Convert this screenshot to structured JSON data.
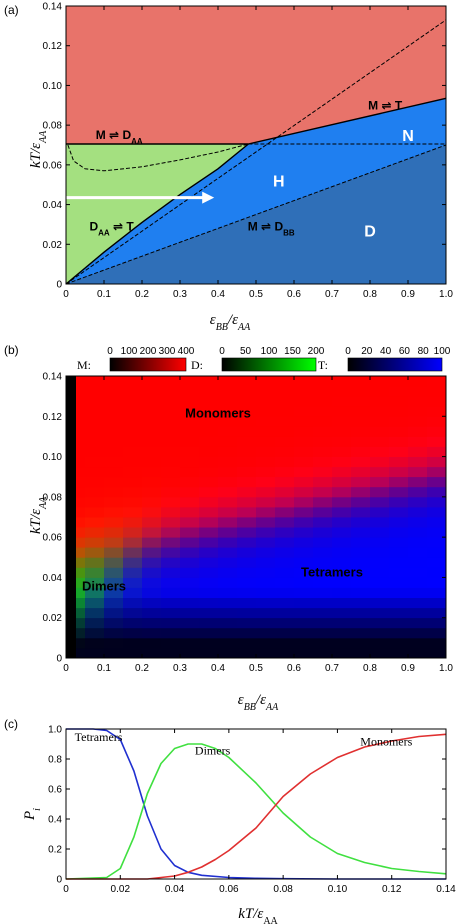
{
  "panels": {
    "a": {
      "label": "(a)"
    },
    "b": {
      "label": "(b)"
    },
    "c": {
      "label": "(c)"
    }
  },
  "colors": {
    "monomer_region": "#e8736a",
    "dimer_region": "#a4e080",
    "hex_region": "#1f7ff0",
    "nematic_region": "#1f7ff0",
    "dense_region": "#2f6fb8",
    "tetramers_curve": "#2030d0",
    "dimers_curve": "#40e040",
    "monomers_curve": "#e03030"
  },
  "chart_data": [
    {
      "type": "area",
      "title": "",
      "xlabel": "εBB/εAA",
      "ylabel": "kT/εAA",
      "xlim": [
        0,
        1.0
      ],
      "ylim": [
        0,
        0.14
      ],
      "x_ticks": [
        "0",
        "0.1",
        "0.2",
        "0.3",
        "0.4",
        "0.5",
        "0.6",
        "0.7",
        "0.8",
        "0.9",
        "1.0"
      ],
      "y_ticks": [
        "0",
        "0.02",
        "0.04",
        "0.06",
        "0.08",
        "0.10",
        "0.12",
        "0.14"
      ],
      "regions": [
        {
          "label": "N",
          "x": 0.9,
          "y": 0.075
        },
        {
          "label": "H",
          "x": 0.56,
          "y": 0.052
        },
        {
          "label": "D",
          "x": 0.8,
          "y": 0.027
        }
      ],
      "annotations": [
        {
          "text": "M ⇌ T",
          "x": 0.84,
          "y": 0.09
        },
        {
          "text": "M ⇌ D",
          "sub": "AA",
          "x": 0.14,
          "y": 0.075
        },
        {
          "text": "D",
          "sub": "AA",
          "tail": " ⇌ T",
          "x": 0.12,
          "y": 0.029
        },
        {
          "text": "M ⇌ D",
          "sub": "BB",
          "x": 0.54,
          "y": 0.029
        }
      ],
      "boundaries": {
        "mt_line": [
          [
            0.48,
            0.0705
          ],
          [
            1.0,
            0.0935
          ]
        ],
        "dimer_hex_line": [
          [
            0.0,
            0.0
          ],
          [
            0.1,
            0.016
          ],
          [
            0.2,
            0.031
          ],
          [
            0.3,
            0.045
          ],
          [
            0.4,
            0.058
          ],
          [
            0.48,
            0.0705
          ]
        ],
        "dense_line": [
          [
            0.0,
            0.0
          ],
          [
            1.0,
            0.07
          ]
        ],
        "horizontal_line": [
          [
            0.0,
            0.0705
          ],
          [
            1.0,
            0.0705
          ]
        ],
        "dashed_diagonal": [
          [
            0.0,
            0.0
          ],
          [
            1.0,
            0.133
          ]
        ],
        "dashed_dimer_curve": [
          [
            0.005,
            0.07
          ],
          [
            0.02,
            0.062
          ],
          [
            0.05,
            0.058
          ],
          [
            0.1,
            0.057
          ],
          [
            0.2,
            0.059
          ],
          [
            0.3,
            0.0625
          ],
          [
            0.4,
            0.0665
          ],
          [
            0.48,
            0.0705
          ]
        ],
        "dashed_horizontal": [
          [
            0.48,
            0.0705
          ],
          [
            1.0,
            0.0705
          ]
        ]
      },
      "arrow": {
        "from": [
          0.0,
          0.0435
        ],
        "to": [
          0.39,
          0.0435
        ]
      }
    },
    {
      "type": "heatmap",
      "title": "",
      "xlabel": "εBB/εAA",
      "ylabel": "kT/εAA",
      "xlim": [
        0,
        1.0
      ],
      "ylim": [
        0,
        0.14
      ],
      "x_ticks": [
        "0",
        "0.1",
        "0.2",
        "0.3",
        "0.4",
        "0.5",
        "0.6",
        "0.7",
        "0.8",
        "0.9",
        "1.0"
      ],
      "y_ticks": [
        "0",
        "0.02",
        "0.04",
        "0.06",
        "0.08",
        "0.10",
        "0.12",
        "0.14"
      ],
      "colorbars": [
        {
          "label": "M:",
          "ticks": [
            "0",
            "100",
            "200",
            "300",
            "400"
          ],
          "from": "#000000",
          "to": "#ff0000"
        },
        {
          "label": "D:",
          "ticks": [
            "0",
            "50",
            "100",
            "150",
            "200"
          ],
          "from": "#000000",
          "to": "#00ff00"
        },
        {
          "label": "T:",
          "ticks": [
            "0",
            "20",
            "40",
            "60",
            "80",
            "100"
          ],
          "from": "#000000",
          "to": "#0000ff"
        }
      ],
      "regions": [
        {
          "label": "Monomers",
          "x": 0.4,
          "y": 0.122
        },
        {
          "label": "Dimers",
          "x": 0.1,
          "y": 0.036
        },
        {
          "label": "Tetramers",
          "x": 0.7,
          "y": 0.043
        }
      ]
    },
    {
      "type": "line",
      "title": "",
      "xlabel": "kT/εAA",
      "ylabel": "Pi",
      "xlim": [
        0,
        0.14
      ],
      "ylim": [
        0,
        1.0
      ],
      "x_ticks": [
        "0",
        "0.02",
        "0.04",
        "0.06",
        "0.08",
        "0.10",
        "0.12",
        "0.14"
      ],
      "y_ticks": [
        "0",
        "0.2",
        "0.4",
        "0.6",
        "0.8",
        "1.0"
      ],
      "series": [
        {
          "name": "Tetramers",
          "x": [
            0,
            0.01,
            0.015,
            0.02,
            0.025,
            0.03,
            0.035,
            0.04,
            0.045,
            0.05,
            0.06,
            0.07,
            0.08,
            0.1,
            0.12,
            0.14
          ],
          "values": [
            1.0,
            1.0,
            0.99,
            0.93,
            0.72,
            0.42,
            0.2,
            0.09,
            0.045,
            0.025,
            0.01,
            0.005,
            0.002,
            0.0,
            0.0,
            0.0
          ]
        },
        {
          "name": "Dimers",
          "x": [
            0,
            0.015,
            0.02,
            0.025,
            0.03,
            0.035,
            0.04,
            0.045,
            0.05,
            0.055,
            0.06,
            0.07,
            0.08,
            0.09,
            0.1,
            0.11,
            0.12,
            0.13,
            0.14
          ],
          "values": [
            0.0,
            0.01,
            0.07,
            0.28,
            0.57,
            0.77,
            0.87,
            0.9,
            0.9,
            0.87,
            0.81,
            0.64,
            0.44,
            0.28,
            0.17,
            0.11,
            0.07,
            0.05,
            0.035
          ]
        },
        {
          "name": "Monomers",
          "x": [
            0,
            0.03,
            0.04,
            0.045,
            0.05,
            0.055,
            0.06,
            0.07,
            0.08,
            0.09,
            0.1,
            0.11,
            0.12,
            0.13,
            0.14
          ],
          "values": [
            0.0,
            0.0,
            0.02,
            0.045,
            0.08,
            0.13,
            0.19,
            0.34,
            0.55,
            0.7,
            0.81,
            0.88,
            0.92,
            0.95,
            0.965
          ]
        }
      ]
    }
  ]
}
